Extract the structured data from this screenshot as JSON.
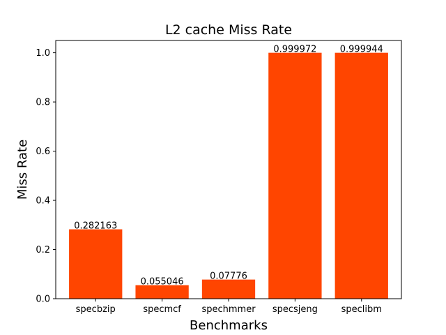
{
  "chart_data": {
    "type": "bar",
    "title": "L2 cache Miss Rate",
    "xlabel": "Benchmarks",
    "ylabel": "Miss Rate",
    "categories": [
      "specbzip",
      "specmcf",
      "spechmmer",
      "specsjeng",
      "speclibm"
    ],
    "values": [
      0.282163,
      0.055046,
      0.07776,
      0.999972,
      0.999944
    ],
    "value_labels": [
      "0.282163",
      "0.055046",
      "0.07776",
      "0.999972",
      "0.999944"
    ],
    "ylim": [
      0,
      1.05
    ],
    "yticks": [
      0.0,
      0.2,
      0.4,
      0.6,
      0.8,
      1.0
    ],
    "ytick_labels": [
      "0.0",
      "0.2",
      "0.4",
      "0.6",
      "0.8",
      "1.0"
    ],
    "grid": false,
    "bar_color": "#ff4500"
  }
}
